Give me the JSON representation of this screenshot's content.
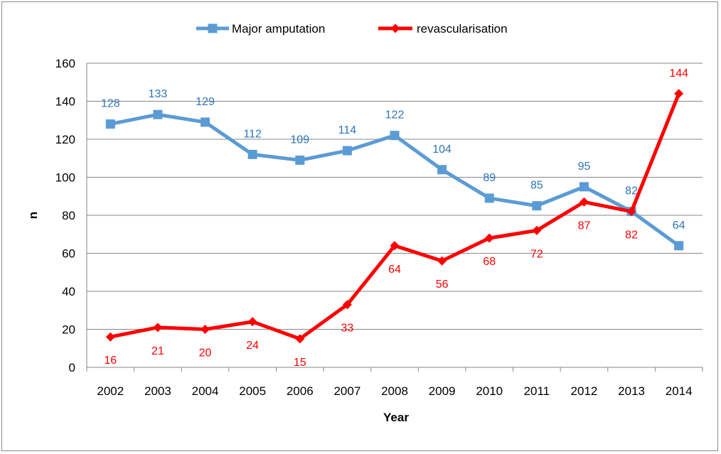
{
  "chart_data": {
    "type": "line",
    "title": "",
    "xlabel": "Year",
    "ylabel": "n",
    "ylim": [
      0,
      160
    ],
    "yticks": [
      0,
      20,
      40,
      60,
      80,
      100,
      120,
      140,
      160
    ],
    "grid": true,
    "legend_position": "top",
    "categories": [
      "2002",
      "2003",
      "2004",
      "2005",
      "2006",
      "2007",
      "2008",
      "2009",
      "2010",
      "2011",
      "2012",
      "2013",
      "2014"
    ],
    "series": [
      {
        "name": "Major amputation",
        "color": "#5B9BD5",
        "label_color": "#2E75B6",
        "marker": "square",
        "label_position": "above",
        "values": [
          128,
          133,
          129,
          112,
          109,
          114,
          122,
          104,
          89,
          85,
          95,
          82,
          64
        ]
      },
      {
        "name": "revascularisation",
        "color": "#FF0000",
        "label_color": "#FF0000",
        "marker": "diamond",
        "label_position": "below",
        "label_positions_override": {
          "12": "above"
        },
        "values": [
          16,
          21,
          20,
          24,
          15,
          33,
          64,
          56,
          68,
          72,
          87,
          82,
          144
        ]
      }
    ]
  }
}
